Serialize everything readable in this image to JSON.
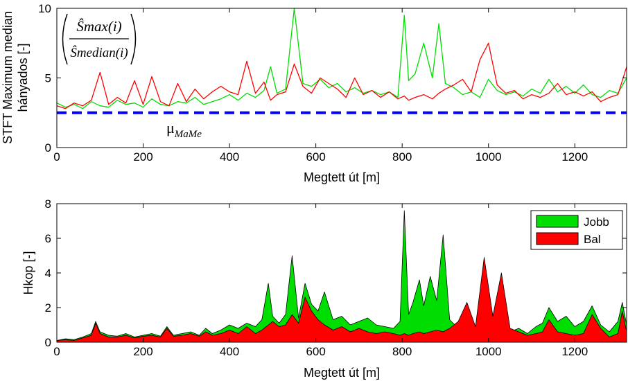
{
  "chart_data": [
    {
      "type": "line",
      "ylabel_lines": [
        "STFT Maximum median",
        "hányados [-]"
      ],
      "xlabel": "Megtett út [m]",
      "xlim": [
        0,
        1320
      ],
      "ylim": [
        0,
        10
      ],
      "xticks": [
        "0",
        "200",
        "400",
        "600",
        "800",
        "1000",
        "1200"
      ],
      "yticks": [
        "0",
        "5",
        "10"
      ],
      "formula": {
        "numerator": "Ŝmax(i)",
        "denominator": "Ŝmedian(i)"
      },
      "reference_line": {
        "label": "μ",
        "subscript": "MaMe",
        "value": 2.5,
        "color": "#0000ff"
      },
      "series": [
        {
          "color": "#00dd00",
          "x": [
            0,
            20,
            40,
            60,
            80,
            100,
            120,
            140,
            160,
            180,
            200,
            220,
            240,
            260,
            280,
            300,
            320,
            340,
            360,
            380,
            400,
            420,
            440,
            460,
            480,
            495,
            510,
            530,
            550,
            570,
            590,
            610,
            630,
            650,
            670,
            690,
            710,
            730,
            750,
            770,
            790,
            805,
            815,
            830,
            850,
            870,
            885,
            900,
            920,
            940,
            960,
            980,
            1000,
            1020,
            1040,
            1060,
            1080,
            1100,
            1120,
            1140,
            1160,
            1180,
            1200,
            1220,
            1240,
            1260,
            1280,
            1300,
            1320
          ],
          "y": [
            3.2,
            2.9,
            3.1,
            2.8,
            3.3,
            3.0,
            2.9,
            3.4,
            3.1,
            3.2,
            2.9,
            3.5,
            3.1,
            3.0,
            3.3,
            3.2,
            3.6,
            3.1,
            3.3,
            3.5,
            3.8,
            3.4,
            3.9,
            3.6,
            4.1,
            5.8,
            3.9,
            4.2,
            10.0,
            4.6,
            4.4,
            4.9,
            4.3,
            4.6,
            4.0,
            4.3,
            3.9,
            4.1,
            3.8,
            4.0,
            3.6,
            9.5,
            4.8,
            5.3,
            7.5,
            5.0,
            8.9,
            4.6,
            4.3,
            3.8,
            4.0,
            3.6,
            4.9,
            4.1,
            3.8,
            4.0,
            3.7,
            4.2,
            3.9,
            4.9,
            4.0,
            4.4,
            3.9,
            4.5,
            3.8,
            3.6,
            4.1,
            3.9,
            5.0
          ]
        },
        {
          "color": "#ff0000",
          "x": [
            0,
            20,
            40,
            60,
            80,
            100,
            120,
            140,
            160,
            180,
            200,
            220,
            240,
            260,
            280,
            300,
            320,
            340,
            360,
            380,
            400,
            420,
            440,
            460,
            480,
            495,
            510,
            530,
            550,
            570,
            590,
            610,
            630,
            650,
            670,
            690,
            710,
            730,
            750,
            770,
            790,
            805,
            815,
            830,
            850,
            870,
            885,
            900,
            920,
            940,
            960,
            980,
            1000,
            1020,
            1040,
            1060,
            1080,
            1100,
            1120,
            1140,
            1160,
            1180,
            1200,
            1220,
            1240,
            1260,
            1280,
            1300,
            1320
          ],
          "y": [
            3.0,
            2.8,
            3.2,
            3.0,
            3.4,
            5.4,
            3.1,
            3.6,
            3.2,
            4.8,
            3.1,
            5.1,
            3.3,
            3.0,
            4.6,
            3.3,
            4.2,
            3.5,
            4.0,
            4.4,
            4.0,
            3.8,
            6.2,
            3.9,
            4.7,
            3.4,
            3.8,
            4.0,
            6.0,
            4.4,
            3.9,
            5.0,
            4.6,
            4.2,
            3.6,
            5.0,
            3.8,
            4.1,
            3.6,
            4.0,
            3.5,
            3.7,
            3.4,
            3.6,
            3.8,
            3.5,
            3.9,
            4.2,
            4.5,
            4.9,
            4.0,
            6.3,
            7.5,
            4.5,
            3.9,
            4.1,
            3.5,
            3.8,
            3.6,
            3.9,
            4.6,
            3.8,
            4.0,
            3.7,
            4.0,
            3.3,
            3.6,
            3.8,
            5.8
          ]
        }
      ]
    },
    {
      "type": "area",
      "ylabel": "Hkop [-]",
      "xlabel": "Megtett út [m]",
      "xlim": [
        0,
        1320
      ],
      "ylim": [
        0,
        8
      ],
      "xticks": [
        "0",
        "200",
        "400",
        "600",
        "800",
        "1000",
        "1200"
      ],
      "yticks": [
        "0",
        "2",
        "4",
        "6",
        "8"
      ],
      "legend": {
        "placement": "top-right",
        "entries": [
          "Jobb",
          "Bal"
        ]
      },
      "series": [
        {
          "name": "Jobb",
          "color": "#00dd00",
          "x": [
            0,
            20,
            40,
            60,
            80,
            90,
            100,
            120,
            140,
            160,
            180,
            200,
            220,
            240,
            255,
            270,
            290,
            310,
            330,
            345,
            360,
            380,
            400,
            420,
            440,
            460,
            475,
            490,
            500,
            515,
            530,
            545,
            560,
            575,
            590,
            605,
            620,
            640,
            660,
            680,
            700,
            720,
            740,
            760,
            780,
            795,
            805,
            815,
            825,
            840,
            850,
            865,
            880,
            895,
            910,
            930,
            950,
            970,
            990,
            1010,
            1030,
            1050,
            1070,
            1090,
            1110,
            1125,
            1140,
            1160,
            1180,
            1200,
            1220,
            1240,
            1260,
            1280,
            1300,
            1310,
            1320
          ],
          "y": [
            0.1,
            0.2,
            0.15,
            0.3,
            0.5,
            1.2,
            0.6,
            0.4,
            0.35,
            0.5,
            0.3,
            0.4,
            0.5,
            0.35,
            0.9,
            0.4,
            0.5,
            0.6,
            0.4,
            0.8,
            0.5,
            0.7,
            1.0,
            0.8,
            1.1,
            0.9,
            1.3,
            3.4,
            1.5,
            1.1,
            1.6,
            5.0,
            1.4,
            3.4,
            2.2,
            1.8,
            2.9,
            1.3,
            1.5,
            1.0,
            1.2,
            1.4,
            1.0,
            0.9,
            0.8,
            1.2,
            7.6,
            1.6,
            2.3,
            3.6,
            2.1,
            3.8,
            2.4,
            6.2,
            1.3,
            0.8,
            0.6,
            0.8,
            1.4,
            0.9,
            0.7,
            0.6,
            0.8,
            0.5,
            0.9,
            1.1,
            2.0,
            1.2,
            1.5,
            0.9,
            1.2,
            2.1,
            1.0,
            0.6,
            1.2,
            2.3,
            1.0
          ]
        },
        {
          "name": "Bal",
          "color": "#ff0000",
          "x": [
            0,
            20,
            40,
            60,
            80,
            90,
            100,
            120,
            140,
            160,
            180,
            200,
            220,
            240,
            255,
            270,
            290,
            310,
            330,
            345,
            360,
            380,
            400,
            420,
            440,
            460,
            475,
            490,
            500,
            515,
            530,
            545,
            560,
            575,
            590,
            605,
            620,
            640,
            660,
            680,
            700,
            720,
            740,
            760,
            780,
            795,
            805,
            815,
            825,
            840,
            850,
            865,
            880,
            895,
            910,
            930,
            950,
            970,
            990,
            1010,
            1030,
            1050,
            1070,
            1090,
            1110,
            1125,
            1140,
            1160,
            1180,
            1200,
            1220,
            1240,
            1260,
            1280,
            1300,
            1310,
            1320
          ],
          "y": [
            0.1,
            0.15,
            0.1,
            0.25,
            0.4,
            1.1,
            0.5,
            0.3,
            0.3,
            0.4,
            0.25,
            0.35,
            0.4,
            0.3,
            0.8,
            0.35,
            0.4,
            0.5,
            0.35,
            0.6,
            0.4,
            0.5,
            0.7,
            0.5,
            0.9,
            0.5,
            0.7,
            1.0,
            1.2,
            0.9,
            1.0,
            1.6,
            1.1,
            2.6,
            1.8,
            1.3,
            1.0,
            0.7,
            0.9,
            0.6,
            0.8,
            0.6,
            0.5,
            0.6,
            0.5,
            0.4,
            0.5,
            0.4,
            0.5,
            0.6,
            0.5,
            0.6,
            0.7,
            0.6,
            0.8,
            1.2,
            2.3,
            0.9,
            4.9,
            1.5,
            4.0,
            0.8,
            0.6,
            0.4,
            0.5,
            0.6,
            1.3,
            0.6,
            0.5,
            0.4,
            0.5,
            1.6,
            0.8,
            0.3,
            0.5,
            1.8,
            0.6
          ]
        }
      ]
    }
  ]
}
